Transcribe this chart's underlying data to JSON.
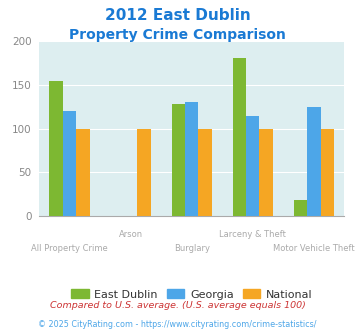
{
  "title_line1": "2012 East Dublin",
  "title_line2": "Property Crime Comparison",
  "categories": [
    "All Property Crime",
    "Arson",
    "Burglary",
    "Larceny & Theft",
    "Motor Vehicle Theft"
  ],
  "east_dublin": [
    155,
    0,
    128,
    181,
    19
  ],
  "georgia": [
    120,
    0,
    130,
    115,
    125
  ],
  "national": [
    100,
    100,
    100,
    100,
    100
  ],
  "bar_color_east_dublin": "#7db832",
  "bar_color_georgia": "#4da6e8",
  "bar_color_national": "#f5a623",
  "background_color": "#ddeef0",
  "ylim": [
    0,
    200
  ],
  "yticks": [
    0,
    50,
    100,
    150,
    200
  ],
  "footnote1": "Compared to U.S. average. (U.S. average equals 100)",
  "footnote2": "© 2025 CityRating.com - https://www.cityrating.com/crime-statistics/",
  "title_color": "#1a7ad4",
  "footnote1_color": "#cc3333",
  "footnote2_color": "#4da6e8",
  "xlabel_color": "#aaaaaa",
  "legend_label_color": "#333333",
  "legend_labels": [
    "East Dublin",
    "Georgia",
    "National"
  ]
}
